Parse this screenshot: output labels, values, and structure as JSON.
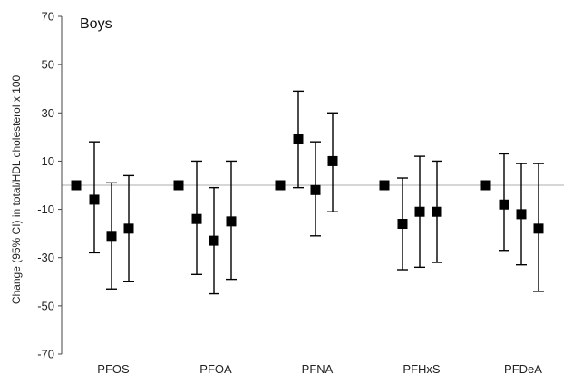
{
  "chart_data": {
    "type": "scatter",
    "title": "",
    "annotation": "Boys",
    "xlabel": "",
    "ylabel": "Change (95% CI) in total/HDL cholesterol x 100",
    "ylim": [
      -70,
      70
    ],
    "yticks": [
      -70,
      -50,
      -30,
      -10,
      10,
      30,
      50,
      70
    ],
    "reference_line_y": 0,
    "grid": false,
    "legend": "none",
    "marker": "square",
    "categories": [
      "PFOS",
      "PFOA",
      "PFNA",
      "PFHxS",
      "PFDeA"
    ],
    "groups": [
      {
        "category": "PFOS",
        "points": [
          {
            "y": 0
          },
          {
            "y": -6,
            "lo": -28,
            "hi": 18
          },
          {
            "y": -21,
            "lo": -43,
            "hi": 1
          },
          {
            "y": -18,
            "lo": -40,
            "hi": 4
          }
        ]
      },
      {
        "category": "PFOA",
        "points": [
          {
            "y": 0
          },
          {
            "y": -14,
            "lo": -37,
            "hi": 10
          },
          {
            "y": -23,
            "lo": -45,
            "hi": -1
          },
          {
            "y": -15,
            "lo": -39,
            "hi": 10
          }
        ]
      },
      {
        "category": "PFNA",
        "points": [
          {
            "y": 0
          },
          {
            "y": 19,
            "lo": -1,
            "hi": 39
          },
          {
            "y": -2,
            "lo": -21,
            "hi": 18
          },
          {
            "y": 10,
            "lo": -11,
            "hi": 30
          }
        ]
      },
      {
        "category": "PFHxS",
        "points": [
          {
            "y": 0
          },
          {
            "y": -16,
            "lo": -35,
            "hi": 3
          },
          {
            "y": -11,
            "lo": -34,
            "hi": 12
          },
          {
            "y": -11,
            "lo": -32,
            "hi": 10
          }
        ]
      },
      {
        "category": "PFDeA",
        "points": [
          {
            "y": 0
          },
          {
            "y": -8,
            "lo": -27,
            "hi": 13
          },
          {
            "y": -12,
            "lo": -33,
            "hi": 9
          },
          {
            "y": -18,
            "lo": -44,
            "hi": 9
          }
        ]
      }
    ],
    "colors": {
      "marker": "#000000",
      "reference_line": "#c8c8c8",
      "axis": "#444444"
    }
  }
}
